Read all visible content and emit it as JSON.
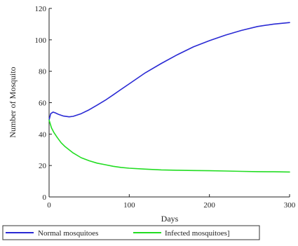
{
  "chart_data": {
    "type": "line",
    "title": "",
    "xlabel": "Days",
    "ylabel": "Number of Mosquito",
    "xlim": [
      0,
      300
    ],
    "ylim": [
      0,
      120
    ],
    "xticks": [
      0,
      100,
      200,
      300
    ],
    "yticks": [
      0,
      20,
      40,
      60,
      80,
      100,
      120
    ],
    "grid": false,
    "legend_position": "bottom",
    "series": [
      {
        "name": "Normal mosquitoes",
        "color": "#2a2ad4",
        "x": [
          0,
          2,
          5,
          8,
          12,
          18,
          25,
          30,
          40,
          50,
          60,
          70,
          80,
          90,
          100,
          120,
          140,
          160,
          180,
          200,
          220,
          240,
          260,
          280,
          300
        ],
        "y": [
          49,
          53,
          54,
          53.5,
          52.5,
          51.5,
          51,
          51.3,
          53,
          55.5,
          58.5,
          61.5,
          65,
          68.5,
          72,
          79,
          85,
          90.5,
          95.5,
          99.5,
          103,
          106,
          108.5,
          110,
          111
        ]
      },
      {
        "name": "Infected mosquitoes]",
        "color": "#22dd22",
        "x": [
          0,
          3,
          6,
          10,
          15,
          20,
          30,
          40,
          50,
          60,
          70,
          80,
          90,
          100,
          120,
          140,
          160,
          180,
          200,
          220,
          240,
          260,
          280,
          300
        ],
        "y": [
          49,
          44,
          41,
          38,
          34.5,
          32,
          28,
          25,
          23,
          21.5,
          20.5,
          19.5,
          18.8,
          18.3,
          17.7,
          17.2,
          17,
          16.8,
          16.7,
          16.5,
          16.3,
          16.1,
          16,
          15.9
        ]
      }
    ]
  }
}
